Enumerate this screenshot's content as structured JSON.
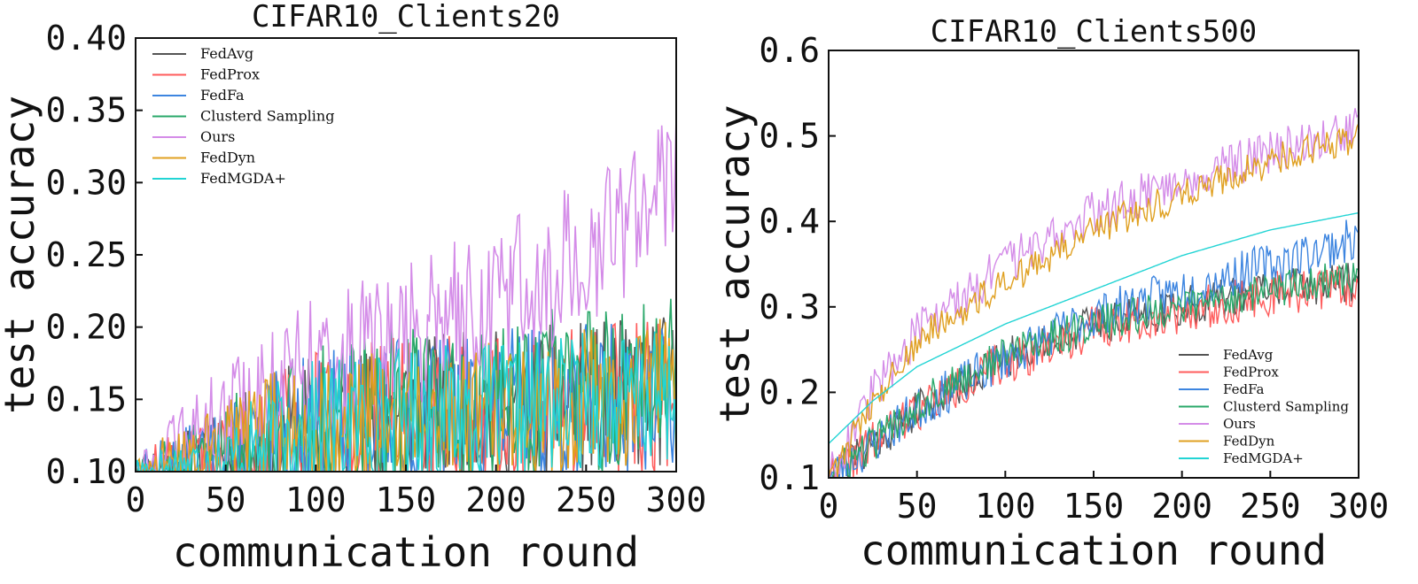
{
  "chart_data": [
    {
      "type": "line",
      "title": "CIFAR10_Clients20",
      "xlabel": "communication round",
      "ylabel": "test accuracy",
      "xlim": [
        0,
        300
      ],
      "ylim": [
        0.1,
        0.4
      ],
      "xticks": [
        0,
        50,
        100,
        150,
        200,
        250,
        300
      ],
      "xtick_labels": [
        "0",
        "50",
        "100",
        "150",
        "200",
        "250",
        "300"
      ],
      "yticks": [
        0.1,
        0.15,
        0.2,
        0.25,
        0.3,
        0.35,
        0.4
      ],
      "ytick_labels": [
        "0.10",
        "0.15",
        "0.20",
        "0.25",
        "0.30",
        "0.35",
        "0.40"
      ],
      "legend_position": "top-left",
      "series": [
        {
          "name": "FedAvg",
          "color": "#555555",
          "keypoints": [
            [
              0,
              0.1
            ],
            [
              50,
              0.11
            ],
            [
              100,
              0.13
            ],
            [
              150,
              0.14
            ],
            [
              200,
              0.145
            ],
            [
              250,
              0.15
            ],
            [
              300,
              0.155
            ]
          ],
          "noise": 0.045,
          "seed": 11
        },
        {
          "name": "FedProx",
          "color": "#ff5c5c",
          "keypoints": [
            [
              0,
              0.1
            ],
            [
              50,
              0.11
            ],
            [
              100,
              0.13
            ],
            [
              150,
              0.14
            ],
            [
              200,
              0.14
            ],
            [
              250,
              0.15
            ],
            [
              300,
              0.15
            ]
          ],
          "noise": 0.045,
          "seed": 12
        },
        {
          "name": "FedFa",
          "color": "#3d85e0",
          "keypoints": [
            [
              0,
              0.1
            ],
            [
              50,
              0.11
            ],
            [
              100,
              0.13
            ],
            [
              150,
              0.14
            ],
            [
              200,
              0.145
            ],
            [
              250,
              0.15
            ],
            [
              300,
              0.155
            ]
          ],
          "noise": 0.045,
          "seed": 13
        },
        {
          "name": "Clusterd Sampling",
          "color": "#2aa86a",
          "keypoints": [
            [
              0,
              0.1
            ],
            [
              50,
              0.115
            ],
            [
              100,
              0.135
            ],
            [
              150,
              0.145
            ],
            [
              200,
              0.15
            ],
            [
              250,
              0.155
            ],
            [
              300,
              0.16
            ]
          ],
          "noise": 0.05,
          "seed": 14
        },
        {
          "name": "Ours",
          "color": "#d48ce8",
          "keypoints": [
            [
              0,
              0.1
            ],
            [
              50,
              0.14
            ],
            [
              100,
              0.17
            ],
            [
              150,
              0.19
            ],
            [
              200,
              0.22
            ],
            [
              250,
              0.25
            ],
            [
              300,
              0.3
            ]
          ],
          "noise": 0.045,
          "seed": 15
        },
        {
          "name": "FedDyn",
          "color": "#e0a020",
          "keypoints": [
            [
              0,
              0.1
            ],
            [
              50,
              0.115
            ],
            [
              100,
              0.13
            ],
            [
              150,
              0.14
            ],
            [
              200,
              0.145
            ],
            [
              250,
              0.15
            ],
            [
              300,
              0.155
            ]
          ],
          "noise": 0.045,
          "seed": 16
        },
        {
          "name": "FedMGDA+",
          "color": "#22d4d4",
          "keypoints": [
            [
              0,
              0.1
            ],
            [
              50,
              0.105
            ],
            [
              100,
              0.13
            ],
            [
              150,
              0.14
            ],
            [
              200,
              0.14
            ],
            [
              250,
              0.15
            ],
            [
              300,
              0.15
            ]
          ],
          "noise": 0.04,
          "seed": 17
        }
      ]
    },
    {
      "type": "line",
      "title": "CIFAR10_Clients500",
      "xlabel": "communication round",
      "ylabel": "test accuracy",
      "xlim": [
        0,
        300
      ],
      "ylim": [
        0.1,
        0.6
      ],
      "xticks": [
        0,
        50,
        100,
        150,
        200,
        250,
        300
      ],
      "xtick_labels": [
        "0",
        "50",
        "100",
        "150",
        "200",
        "250",
        "300"
      ],
      "yticks": [
        0.1,
        0.2,
        0.3,
        0.4,
        0.5,
        0.6
      ],
      "ytick_labels": [
        "0.1",
        "0.2",
        "0.3",
        "0.4",
        "0.5",
        "0.6"
      ],
      "legend_position": "bottom-right",
      "series": [
        {
          "name": "FedAvg",
          "color": "#555555",
          "keypoints": [
            [
              0,
              0.1
            ],
            [
              25,
              0.14
            ],
            [
              50,
              0.18
            ],
            [
              100,
              0.24
            ],
            [
              150,
              0.28
            ],
            [
              200,
              0.3
            ],
            [
              250,
              0.32
            ],
            [
              300,
              0.33
            ]
          ],
          "noise": 0.018,
          "seed": 21
        },
        {
          "name": "FedProx",
          "color": "#ff5c5c",
          "keypoints": [
            [
              0,
              0.1
            ],
            [
              25,
              0.14
            ],
            [
              50,
              0.18
            ],
            [
              100,
              0.235
            ],
            [
              150,
              0.275
            ],
            [
              200,
              0.295
            ],
            [
              250,
              0.315
            ],
            [
              300,
              0.325
            ]
          ],
          "noise": 0.02,
          "seed": 22
        },
        {
          "name": "FedFa",
          "color": "#3d85e0",
          "keypoints": [
            [
              0,
              0.1
            ],
            [
              25,
              0.14
            ],
            [
              50,
              0.18
            ],
            [
              100,
              0.24
            ],
            [
              150,
              0.29
            ],
            [
              200,
              0.32
            ],
            [
              250,
              0.35
            ],
            [
              300,
              0.38
            ]
          ],
          "noise": 0.02,
          "seed": 23
        },
        {
          "name": "Clusterd Sampling",
          "color": "#2aa86a",
          "keypoints": [
            [
              0,
              0.1
            ],
            [
              25,
              0.14
            ],
            [
              50,
              0.185
            ],
            [
              100,
              0.245
            ],
            [
              150,
              0.28
            ],
            [
              200,
              0.3
            ],
            [
              250,
              0.32
            ],
            [
              300,
              0.335
            ]
          ],
          "noise": 0.017,
          "seed": 24
        },
        {
          "name": "Ours",
          "color": "#d48ce8",
          "keypoints": [
            [
              0,
              0.1
            ],
            [
              25,
              0.2
            ],
            [
              50,
              0.27
            ],
            [
              100,
              0.35
            ],
            [
              150,
              0.41
            ],
            [
              200,
              0.45
            ],
            [
              250,
              0.48
            ],
            [
              300,
              0.51
            ]
          ],
          "noise": 0.02,
          "seed": 25
        },
        {
          "name": "FedDyn",
          "color": "#e0a020",
          "keypoints": [
            [
              0,
              0.1
            ],
            [
              25,
              0.19
            ],
            [
              50,
              0.26
            ],
            [
              100,
              0.33
            ],
            [
              150,
              0.39
            ],
            [
              200,
              0.43
            ],
            [
              250,
              0.47
            ],
            [
              300,
              0.5
            ]
          ],
          "noise": 0.015,
          "seed": 26
        },
        {
          "name": "FedMGDA+",
          "color": "#22d4d4",
          "keypoints": [
            [
              0,
              0.14
            ],
            [
              25,
              0.19
            ],
            [
              50,
              0.23
            ],
            [
              100,
              0.28
            ],
            [
              150,
              0.32
            ],
            [
              200,
              0.36
            ],
            [
              250,
              0.39
            ],
            [
              300,
              0.41
            ]
          ],
          "noise": 0.0,
          "seed": 27
        }
      ]
    }
  ]
}
